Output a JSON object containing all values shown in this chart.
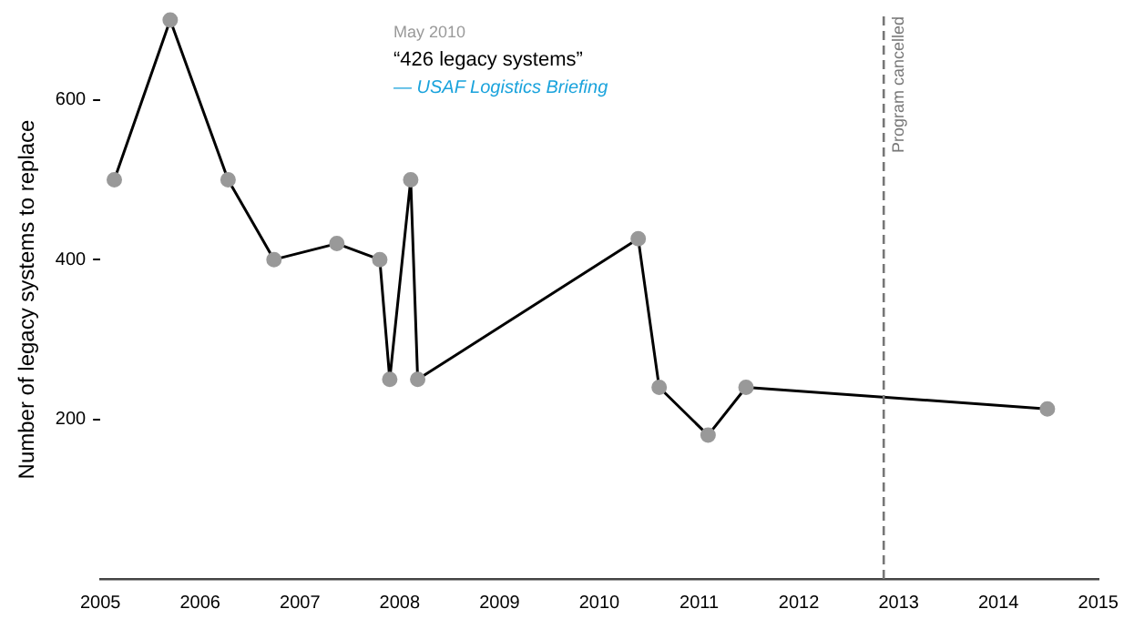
{
  "chart_data": {
    "type": "line",
    "ylabel": "Number of legacy systems to replace",
    "x": [
      2005.14,
      2005.7,
      2006.28,
      2006.74,
      2007.37,
      2007.8,
      2007.9,
      2008.11,
      2008.18,
      2010.39,
      2010.6,
      2011.09,
      2011.47,
      2014.49
    ],
    "series": [
      {
        "color": "#000000",
        "values": [
          500,
          700,
          500,
          400,
          420,
          400,
          250,
          500,
          250,
          426,
          240,
          180,
          240,
          213
        ]
      }
    ],
    "xlim": [
      2005,
      2015
    ],
    "xticks": [
      2005,
      2006,
      2007,
      2008,
      2009,
      2010,
      2011,
      2012,
      2013,
      2014,
      2015
    ],
    "ylim": [
      0,
      700
    ],
    "yticks": [
      {
        "value": 200,
        "label": "200"
      },
      {
        "value": 400,
        "label": "400"
      },
      {
        "value": 600,
        "label": "600"
      }
    ],
    "grid": false,
    "legend": false,
    "marker": "circle",
    "line_style": "solid",
    "ref_lines": [
      {
        "axis": "x",
        "value": 2012.85,
        "label": "Program cancelled",
        "color": "#777777",
        "line_style": "dashed"
      }
    ],
    "annotations": [
      "May 2010",
      "“426 legacy systems”",
      "— USAF Logistics Briefing"
    ]
  }
}
